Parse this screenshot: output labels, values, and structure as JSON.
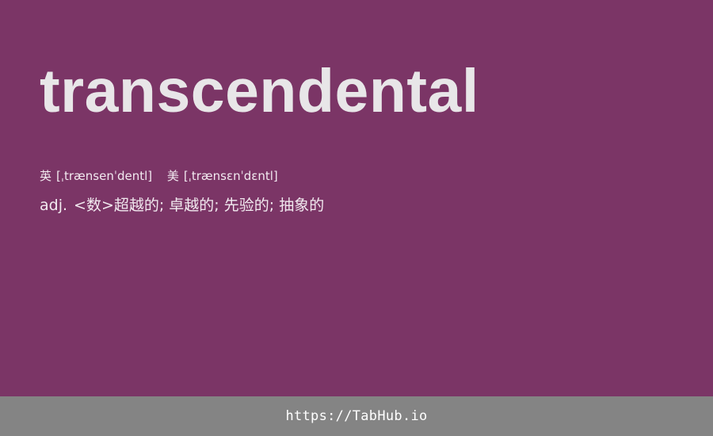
{
  "word": "transcendental",
  "phonetics": [
    {
      "label": "英",
      "ipa": "[ˌtrænsenˈdentl]"
    },
    {
      "label": "美",
      "ipa": "[ˌtrænsɛnˈdɛntl]"
    }
  ],
  "definition": {
    "pos": "adj.",
    "meaning": "<数>超越的; 卓越的; 先验的; 抽象的"
  },
  "footer": {
    "link_text": "https://TabHub.io"
  },
  "colors": {
    "background": "#7b3566",
    "footer_background": "#848484",
    "word_text": "#e8e6e8"
  }
}
